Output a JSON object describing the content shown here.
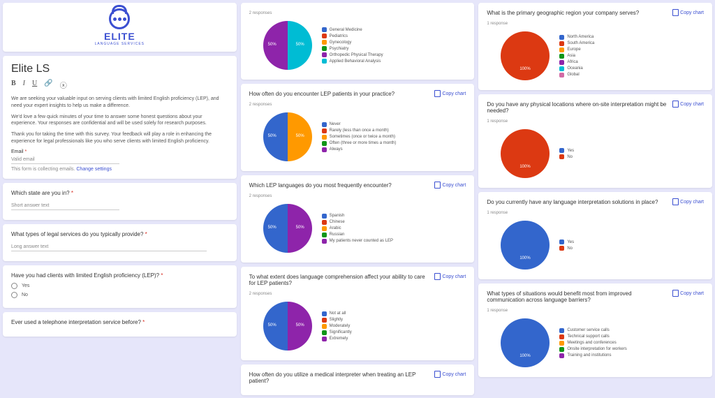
{
  "copy_label": "Copy chart",
  "logo": {
    "name": "ELITE",
    "sub": "LANGUAGE SERVICES"
  },
  "form": {
    "title": "Elite LS",
    "p1": "We are seeking your valuable input on serving clients with limited English proficiency (LEP), and need your expert insights to help us make a difference.",
    "p2": "We'd love a few quick minutes of your time to answer some honest questions about your experience. Your responses are confidential and will be used solely for research purposes.",
    "p3": "Thank you for taking the time with this survey. Your feedback will play a role in enhancing the experience for legal professionals like you who serve clients with limited English proficiency.",
    "email_label": "Email",
    "email_placeholder": "Valid email",
    "note": "This form is collecting emails.",
    "note_link": "Change settings"
  },
  "q_state": {
    "title": "Which state are you in?",
    "placeholder": "Short answer text"
  },
  "q_services": {
    "title": "What types of legal services do you typically provide?",
    "placeholder": "Long answer text"
  },
  "q_lep": {
    "title": "Have you had clients with limited English proficiency (LEP)?",
    "opt1": "Yes",
    "opt2": "No"
  },
  "q_phone": {
    "title": "Ever used a telephone interpretation service before?"
  },
  "chart1": {
    "responses": "2 responses",
    "slices": [
      {
        "pct": 50,
        "color": "#00bcd4",
        "label": "50%"
      },
      {
        "pct": 50,
        "color": "#8e24aa",
        "label": "50%"
      }
    ],
    "legend": [
      {
        "label": "General Medicine",
        "color": "#3366cc"
      },
      {
        "label": "Pediatrics",
        "color": "#dc3912"
      },
      {
        "label": "Gynecology",
        "color": "#ff9900"
      },
      {
        "label": "Psychiatry",
        "color": "#109618"
      },
      {
        "label": "Orthopedic Physical Therapy",
        "color": "#8e24aa"
      },
      {
        "label": "Applied Behavioral Analysis",
        "color": "#00bcd4"
      }
    ]
  },
  "chart2": {
    "title": "How often do you encounter LEP patients in your practice?",
    "responses": "2 responses",
    "slices": [
      {
        "pct": 50,
        "color": "#ff9900",
        "label": "50%"
      },
      {
        "pct": 50,
        "color": "#3366cc",
        "label": "50%"
      }
    ],
    "legend": [
      {
        "label": "Never",
        "color": "#3366cc"
      },
      {
        "label": "Rarely (less than once a month)",
        "color": "#dc3912"
      },
      {
        "label": "Sometimes (once or twice a month)",
        "color": "#ff9900"
      },
      {
        "label": "Often (three or more times a month)",
        "color": "#109618"
      },
      {
        "label": "Always",
        "color": "#8e24aa"
      }
    ]
  },
  "chart3": {
    "title": "Which LEP languages do you most frequently encounter?",
    "responses": "2 responses",
    "slices": [
      {
        "pct": 50,
        "color": "#8e24aa",
        "label": "50%"
      },
      {
        "pct": 50,
        "color": "#3366cc",
        "label": "50%"
      }
    ],
    "legend": [
      {
        "label": "Spanish",
        "color": "#3366cc"
      },
      {
        "label": "Chinese",
        "color": "#dc3912"
      },
      {
        "label": "Arabic",
        "color": "#ff9900"
      },
      {
        "label": "Russian",
        "color": "#109618"
      },
      {
        "label": "My patients never counted as LEP",
        "color": "#8e24aa"
      }
    ]
  },
  "chart4": {
    "title": "To what extent does language comprehension affect your ability to care for LEP patients?",
    "responses": "2 responses",
    "slices": [
      {
        "pct": 50,
        "color": "#8e24aa",
        "label": "50%"
      },
      {
        "pct": 50,
        "color": "#3366cc",
        "label": "50%"
      }
    ],
    "legend": [
      {
        "label": "Not at all",
        "color": "#3366cc"
      },
      {
        "label": "Slightly",
        "color": "#dc3912"
      },
      {
        "label": "Moderately",
        "color": "#ff9900"
      },
      {
        "label": "Significantly",
        "color": "#109618"
      },
      {
        "label": "Extremely",
        "color": "#8e24aa"
      }
    ]
  },
  "chart5": {
    "title": "How often do you utilize a medical interpreter when treating an LEP patient?",
    "responses": ""
  },
  "chart6": {
    "title": "What is the primary geographic region your company serves?",
    "responses": "1 response",
    "slices": [
      {
        "pct": 100,
        "color": "#dc3912",
        "label": "100%"
      }
    ],
    "legend": [
      {
        "label": "North America",
        "color": "#3366cc"
      },
      {
        "label": "South America",
        "color": "#dc3912"
      },
      {
        "label": "Europe",
        "color": "#ff9900"
      },
      {
        "label": "Asia",
        "color": "#109618"
      },
      {
        "label": "Africa",
        "color": "#8e24aa"
      },
      {
        "label": "Oceania",
        "color": "#00bcd4"
      },
      {
        "label": "Global",
        "color": "#d16ba5"
      }
    ]
  },
  "chart7": {
    "title": "Do you have any physical locations where on-site interpretation might be needed?",
    "responses": "1 response",
    "slices": [
      {
        "pct": 100,
        "color": "#dc3912",
        "label": "100%"
      }
    ],
    "legend": [
      {
        "label": "Yes",
        "color": "#3366cc"
      },
      {
        "label": "No",
        "color": "#dc3912"
      }
    ]
  },
  "chart8": {
    "title": "Do you currently have any language interpretation solutions in place?",
    "responses": "1 response",
    "slices": [
      {
        "pct": 100,
        "color": "#3366cc",
        "label": "100%"
      }
    ],
    "legend": [
      {
        "label": "Yes",
        "color": "#3366cc"
      },
      {
        "label": "No",
        "color": "#dc3912"
      }
    ]
  },
  "chart9": {
    "title": "What types of situations would benefit most from improved communication across language barriers?",
    "responses": "1 response",
    "slices": [
      {
        "pct": 100,
        "color": "#3366cc",
        "label": "100%"
      }
    ],
    "legend": [
      {
        "label": "Customer service calls",
        "color": "#3366cc"
      },
      {
        "label": "Technical support calls",
        "color": "#dc3912"
      },
      {
        "label": "Meetings and conferences",
        "color": "#ff9900"
      },
      {
        "label": "Onsite interpretation for workers",
        "color": "#109618"
      },
      {
        "label": "Training and institutions",
        "color": "#8e24aa"
      }
    ]
  }
}
